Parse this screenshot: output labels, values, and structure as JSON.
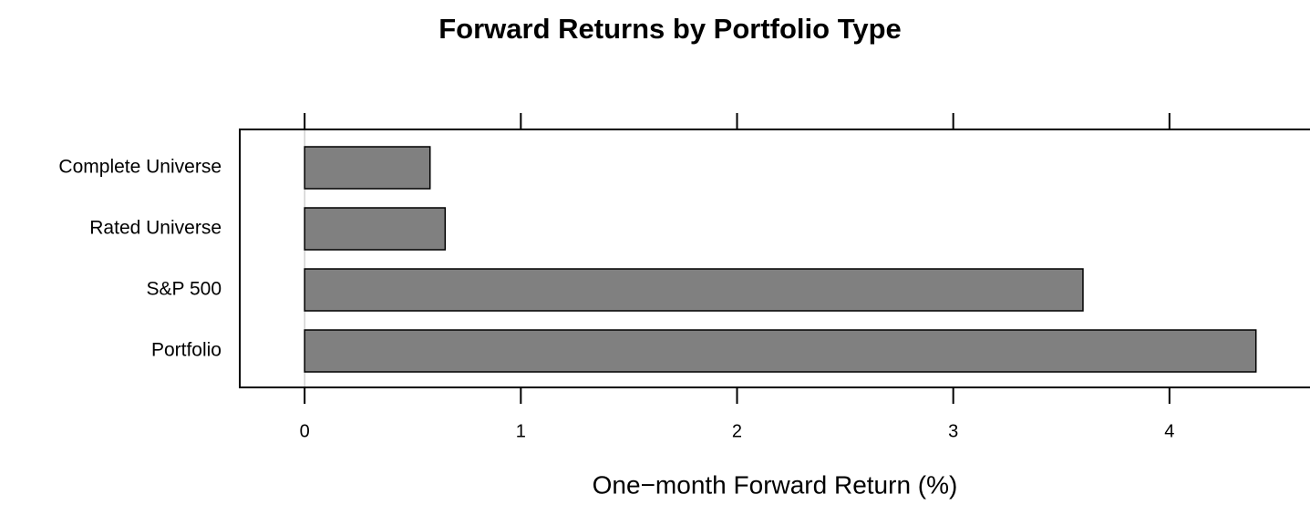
{
  "chart_data": {
    "type": "barh",
    "title": "Forward Returns by Portfolio Type",
    "xlabel": "One−month Forward Return (%)",
    "categories": [
      "Complete Universe",
      "Rated Universe",
      "S&P 500",
      "Portfolio"
    ],
    "values": [
      0.58,
      0.65,
      3.6,
      4.4
    ],
    "color": "#808080",
    "xlim": [
      -0.3,
      4.65
    ],
    "xticks": [
      0,
      1,
      2,
      3,
      4
    ]
  }
}
